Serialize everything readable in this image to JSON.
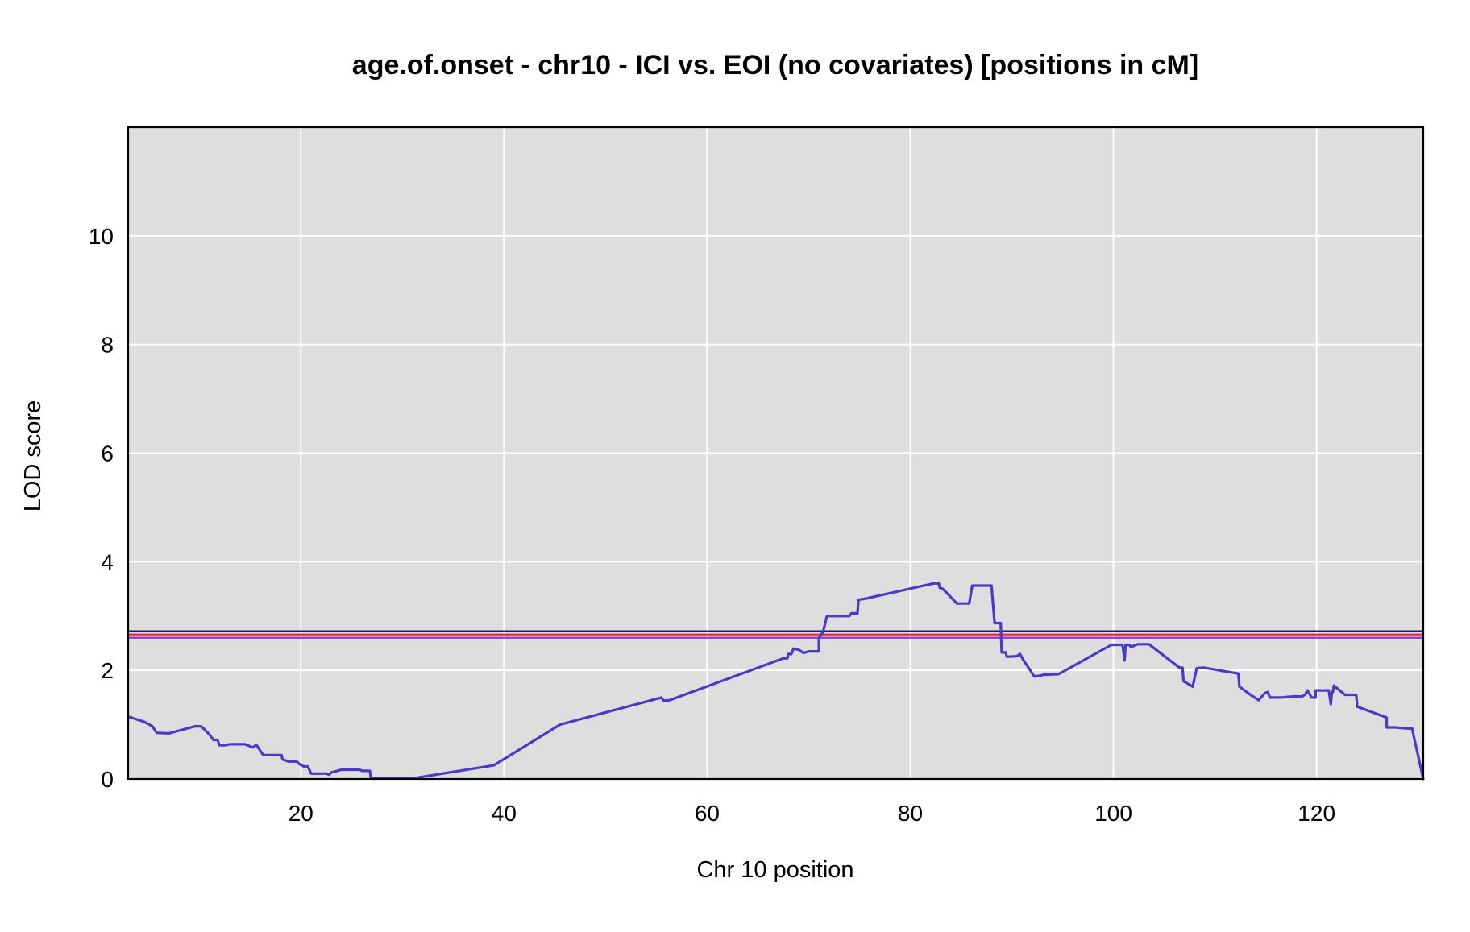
{
  "chart_data": {
    "type": "line",
    "title": "age.of.onset - chr10 - ICI vs. EOI (no covariates) [positions in cM]",
    "xlabel": "Chr 10 position",
    "ylabel": "LOD score",
    "xlim": [
      3,
      130.5
    ],
    "ylim": [
      0,
      12
    ],
    "xticks": [
      20,
      40,
      60,
      80,
      100,
      120
    ],
    "yticks": [
      0,
      2,
      4,
      6,
      8,
      10
    ],
    "grid": true,
    "legend": "none",
    "colors": {
      "plot_background": "#dedede",
      "grid": "#ffffff",
      "frame": "#000000",
      "series": "#4a3bc4",
      "threshold_1": "#1a1a6e",
      "threshold_2": "#e0263a",
      "threshold_3": "#9a2fd6"
    },
    "thresholds": [
      {
        "y": 2.72,
        "color": "#1a1a6e"
      },
      {
        "y": 2.66,
        "color": "#e0263a"
      },
      {
        "y": 2.6,
        "color": "#9a2fd6"
      }
    ],
    "series": [
      {
        "color": "#4a3bc4",
        "points": [
          [
            3.0,
            1.15
          ],
          [
            4.3,
            1.07
          ],
          [
            4.6,
            1.05
          ],
          [
            5.4,
            0.97
          ],
          [
            5.8,
            0.85
          ],
          [
            7.0,
            0.84
          ],
          [
            9.6,
            0.97
          ],
          [
            10.2,
            0.97
          ],
          [
            11.0,
            0.82
          ],
          [
            11.4,
            0.72
          ],
          [
            11.8,
            0.72
          ],
          [
            12.0,
            0.62
          ],
          [
            12.6,
            0.62
          ],
          [
            13.0,
            0.64
          ],
          [
            14.5,
            0.64
          ],
          [
            15.3,
            0.58
          ],
          [
            15.6,
            0.63
          ],
          [
            15.8,
            0.58
          ],
          [
            16.0,
            0.52
          ],
          [
            16.3,
            0.44
          ],
          [
            18.1,
            0.44
          ],
          [
            18.2,
            0.36
          ],
          [
            18.8,
            0.32
          ],
          [
            19.6,
            0.32
          ],
          [
            19.9,
            0.27
          ],
          [
            20.3,
            0.23
          ],
          [
            20.7,
            0.23
          ],
          [
            21.0,
            0.1
          ],
          [
            22.5,
            0.1
          ],
          [
            22.8,
            0.08
          ],
          [
            23.0,
            0.12
          ],
          [
            24.0,
            0.17
          ],
          [
            25.8,
            0.17
          ],
          [
            26.0,
            0.15
          ],
          [
            26.8,
            0.15
          ],
          [
            26.9,
            0.01
          ],
          [
            31.0,
            0.01
          ],
          [
            39.0,
            0.25
          ],
          [
            45.5,
            1.0
          ],
          [
            55.5,
            1.5
          ],
          [
            55.7,
            1.44
          ],
          [
            56.3,
            1.45
          ],
          [
            67.5,
            2.22
          ],
          [
            67.9,
            2.22
          ],
          [
            68.0,
            2.3
          ],
          [
            68.3,
            2.3
          ],
          [
            68.5,
            2.4
          ],
          [
            69.0,
            2.38
          ],
          [
            69.5,
            2.32
          ],
          [
            70.0,
            2.35
          ],
          [
            71.0,
            2.35
          ],
          [
            71.0,
            2.6
          ],
          [
            71.4,
            2.7
          ],
          [
            71.8,
            3.0
          ],
          [
            74.0,
            3.0
          ],
          [
            74.2,
            3.05
          ],
          [
            74.8,
            3.05
          ],
          [
            74.9,
            3.3
          ],
          [
            75.6,
            3.32
          ],
          [
            82.3,
            3.6
          ],
          [
            82.8,
            3.6
          ],
          [
            82.9,
            3.52
          ],
          [
            83.2,
            3.5
          ],
          [
            84.6,
            3.23
          ],
          [
            85.8,
            3.23
          ],
          [
            86.1,
            3.56
          ],
          [
            88.0,
            3.56
          ],
          [
            88.3,
            2.87
          ],
          [
            88.9,
            2.87
          ],
          [
            89.0,
            2.33
          ],
          [
            89.4,
            2.33
          ],
          [
            89.5,
            2.25
          ],
          [
            90.5,
            2.26
          ],
          [
            90.8,
            2.3
          ],
          [
            91.1,
            2.2
          ],
          [
            92.2,
            1.89
          ],
          [
            92.8,
            1.9
          ],
          [
            93.1,
            1.92
          ],
          [
            94.6,
            1.93
          ],
          [
            99.8,
            2.47
          ],
          [
            100.9,
            2.47
          ],
          [
            101.1,
            2.18
          ],
          [
            101.2,
            2.47
          ],
          [
            101.6,
            2.47
          ],
          [
            101.7,
            2.43
          ],
          [
            102.4,
            2.48
          ],
          [
            103.5,
            2.48
          ],
          [
            106.5,
            2.05
          ],
          [
            106.8,
            2.05
          ],
          [
            106.9,
            1.8
          ],
          [
            107.8,
            1.7
          ],
          [
            108.2,
            2.04
          ],
          [
            108.9,
            2.05
          ],
          [
            112.3,
            1.94
          ],
          [
            112.4,
            1.7
          ],
          [
            113.5,
            1.55
          ],
          [
            114.3,
            1.45
          ],
          [
            114.9,
            1.58
          ],
          [
            115.2,
            1.6
          ],
          [
            115.4,
            1.5
          ],
          [
            116.5,
            1.5
          ],
          [
            117.8,
            1.52
          ],
          [
            118.6,
            1.52
          ],
          [
            118.9,
            1.56
          ],
          [
            119.1,
            1.63
          ],
          [
            119.5,
            1.5
          ],
          [
            119.9,
            1.5
          ],
          [
            119.9,
            1.63
          ],
          [
            121.2,
            1.63
          ],
          [
            121.4,
            1.38
          ],
          [
            121.5,
            1.6
          ],
          [
            121.6,
            1.6
          ],
          [
            121.7,
            1.72
          ],
          [
            122.8,
            1.55
          ],
          [
            123.9,
            1.55
          ],
          [
            124.0,
            1.33
          ],
          [
            126.9,
            1.13
          ],
          [
            126.9,
            0.95
          ],
          [
            127.8,
            0.95
          ],
          [
            128.9,
            0.93
          ],
          [
            129.4,
            0.93
          ],
          [
            130.5,
            0.0
          ]
        ]
      }
    ]
  }
}
